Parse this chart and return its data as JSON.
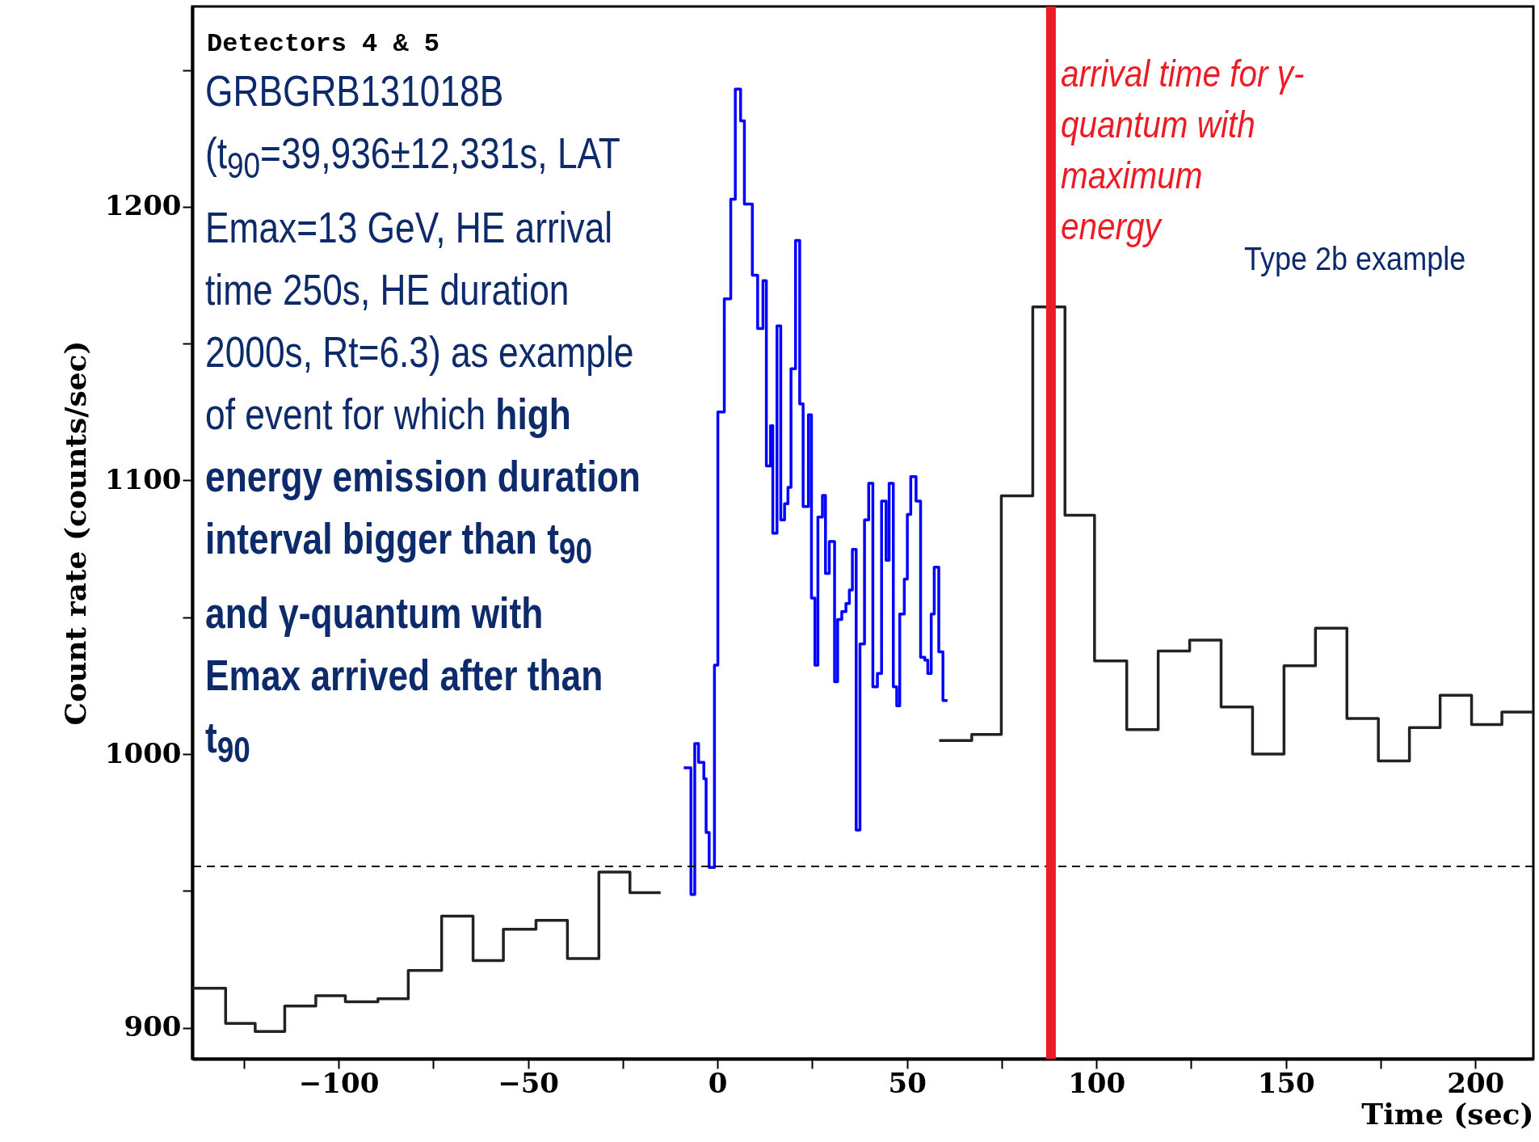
{
  "chart_data": {
    "type": "step",
    "xlabel": "Time (sec)",
    "ylabel": "Count rate (counts/sec)",
    "xlim": [
      -138.6,
      215.3
    ],
    "ylim": [
      888.7,
      1273.2
    ],
    "xticks": [
      {
        "value": -125,
        "label": null
      },
      -100,
      {
        "value": -75,
        "label": null
      },
      -50,
      {
        "value": -25,
        "label": null
      },
      0,
      {
        "value": 25,
        "label": null
      },
      50,
      {
        "value": 75,
        "label": null
      },
      100,
      {
        "value": 125,
        "label": null
      },
      150,
      {
        "value": 175,
        "label": null
      },
      200
    ],
    "yticks": [
      900,
      {
        "value": 950,
        "label": null
      },
      1000,
      {
        "value": 1050,
        "label": null
      },
      1100,
      {
        "value": 1150,
        "label": null
      },
      1200,
      {
        "value": 1250,
        "label": null
      }
    ],
    "series": [
      {
        "color": "#222222",
        "x": [
          -138.6,
          -129.8,
          -122.0,
          -114.2,
          -106.0,
          -98.2,
          -89.6,
          -81.6,
          -72.8,
          -64.5,
          -56.5,
          -47.9,
          -39.6,
          -31.3,
          -23.1,
          -15.0
        ],
        "values": [
          914.5,
          901.6,
          898.7,
          908.0,
          911.7,
          909.5,
          910.6,
          921.0,
          940.8,
          924.6,
          936.0,
          939.3,
          925.3,
          956.9,
          949.4,
          949.4
        ]
      },
      {
        "color": "#222222",
        "x": [
          58.5,
          67.1,
          74.9,
          83.2,
          91.7,
          99.5,
          108.0,
          116.3,
          124.6,
          132.9,
          141.2,
          149.5,
          157.8,
          166.1,
          174.4,
          182.6,
          190.7,
          199.0,
          207.0,
          215.3
        ],
        "values": [
          1005.0,
          1007.2,
          1094.4,
          1163.4,
          1087.3,
          1034.1,
          1009.0,
          1037.7,
          1041.7,
          1017.2,
          1000.0,
          1032.3,
          1046.0,
          1013.0,
          997.5,
          1009.7,
          1021.5,
          1010.8,
          1015.4,
          1015.4
        ]
      },
      {
        "color": "#0000ff",
        "x": [
          -8.9,
          -7.0,
          -6.0,
          -5.0,
          -3.6,
          -3.0,
          -2.2,
          -0.8,
          0.1,
          1.8,
          3.5,
          4.7,
          6.1,
          7.1,
          9.2,
          10.6,
          12.0,
          12.9,
          14.0,
          14.6,
          15.7,
          16.7,
          17.7,
          18.6,
          19.4,
          20.6,
          21.7,
          22.6,
          24.0,
          24.8,
          25.7,
          26.5,
          27.7,
          28.5,
          29.5,
          30.9,
          31.7,
          32.8,
          33.9,
          34.8,
          35.6,
          36.6,
          37.6,
          38.8,
          39.9,
          41.0,
          42.2,
          43.3,
          44.5,
          45.3,
          46.4,
          47.3,
          48.1,
          49.3,
          50.1,
          51.0,
          52.4,
          53.6,
          54.7,
          55.5,
          56.4,
          57.2,
          58.4,
          59.5,
          60.7
        ],
        "values": [
          995.0,
          948.7,
          1003.9,
          997.0,
          991.0,
          971.4,
          958.6,
          1032.5,
          1125.0,
          1166.4,
          1202.8,
          1243.0,
          1231.4,
          1201.0,
          1175.0,
          1155.5,
          1173.0,
          1105.3,
          1120.0,
          1080.7,
          1156.5,
          1085.6,
          1091.5,
          1097.5,
          1140.8,
          1187.7,
          1128.0,
          1090.5,
          1124.0,
          1057.0,
          1032.5,
          1086.6,
          1094.5,
          1066.0,
          1077.7,
          1026.5,
          1049.2,
          1052.1,
          1055.0,
          1060.0,
          1074.8,
          972.3,
          1040.3,
          1085.6,
          1099.0,
          1024.6,
          1029.5,
          1092.5,
          1070.8,
          1099.0,
          1024.6,
          1017.7,
          1051.2,
          1064.0,
          1087.6,
          1101.4,
          1092.5,
          1035.4,
          1034.4,
          1029.5,
          1051.2,
          1068.3,
          1037.4,
          1019.6,
          1019.6
        ]
      }
    ],
    "ref_lines": [
      {
        "axis": "y",
        "value": 959,
        "color": "#000000",
        "line_style": "dashed"
      },
      {
        "axis": "x",
        "value": 88,
        "color": "#ed1c24",
        "label": "arrival time for γ-quantum with maximum energy"
      }
    ],
    "annotations": [
      "Detectors 4 & 5",
      "GRBGRB131018B (t$_{90}$=39,936±12,331s, LAT Emax=13 GeV, HE arrival time 250s, HE duration 2000s, Rt=6.3) as example of event for which",
      "high energy emission duration interval bigger than t$_{90}$ and γ-quantum with Emax arrived after than t$_{90}$",
      "Type 2b example"
    ]
  }
}
